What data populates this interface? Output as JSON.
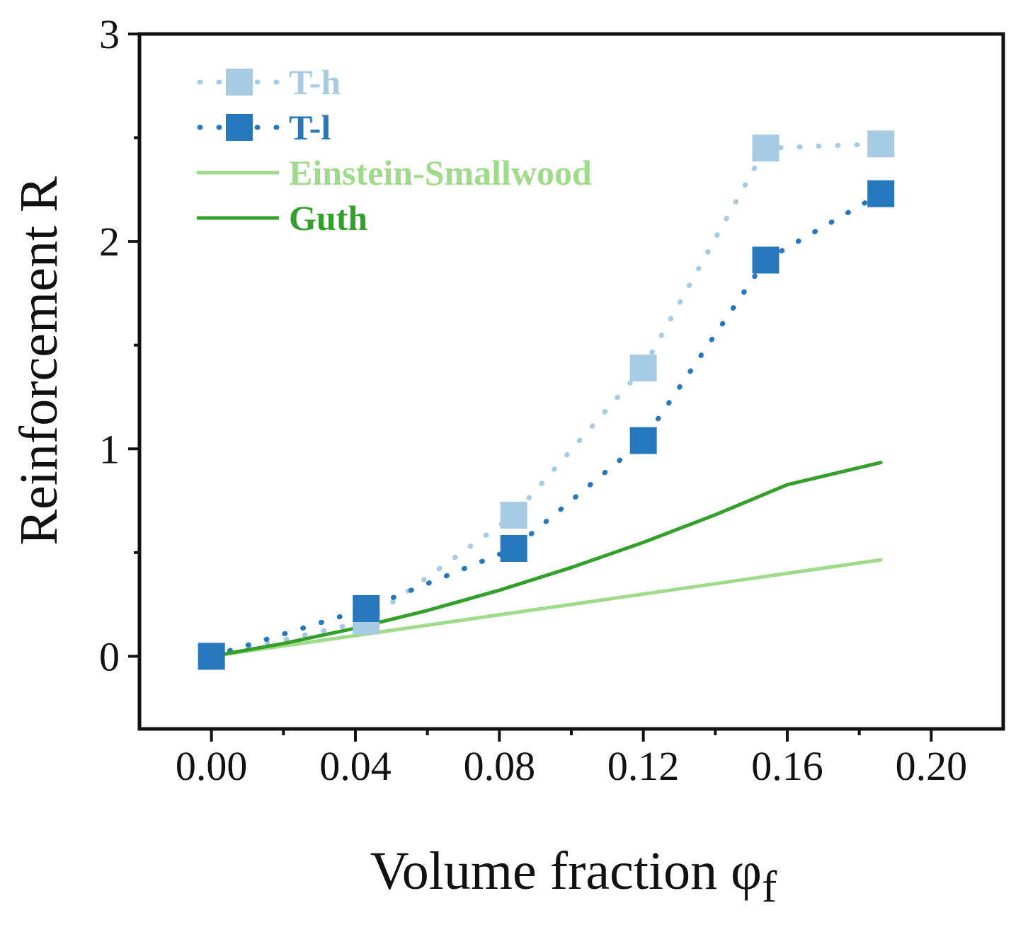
{
  "chart_data": {
    "type": "line",
    "title": "",
    "xlabel": "Volume fraction φ",
    "xlabel_subscript": "f",
    "ylabel": "Reinforcement R",
    "xlim": [
      -0.02,
      0.22
    ],
    "ylim": [
      -0.35,
      3.0
    ],
    "xticks": [
      0.0,
      0.04,
      0.08,
      0.12,
      0.16,
      0.2
    ],
    "xtick_labels": [
      "0.00",
      "0.04",
      "0.08",
      "0.12",
      "0.16",
      "0.20"
    ],
    "yticks": [
      0,
      1,
      2,
      3
    ],
    "ytick_labels": [
      "0",
      "1",
      "2",
      "3"
    ],
    "grid": false,
    "legend_position": "top-left",
    "series": [
      {
        "name": "T-h",
        "color": "#a6cbe3",
        "style": "dotted-with-square-markers",
        "x": [
          0.0,
          0.043,
          0.084,
          0.12,
          0.154,
          0.186
        ],
        "y": [
          0.0,
          0.17,
          0.68,
          1.39,
          2.45,
          2.47
        ]
      },
      {
        "name": "T-l",
        "color": "#2677bb",
        "style": "dotted-with-square-markers",
        "x": [
          0.0,
          0.043,
          0.084,
          0.12,
          0.154,
          0.186
        ],
        "y": [
          0.0,
          0.23,
          0.52,
          1.04,
          1.91,
          2.23
        ]
      },
      {
        "name": "Einstein-Smallwood",
        "color": "#9fdb8a",
        "style": "solid",
        "x": [
          0.0,
          0.02,
          0.04,
          0.06,
          0.08,
          0.1,
          0.12,
          0.14,
          0.16,
          0.186
        ],
        "y": [
          0.0,
          0.05,
          0.1,
          0.15,
          0.2,
          0.25,
          0.3,
          0.35,
          0.4,
          0.465
        ]
      },
      {
        "name": "Guth",
        "color": "#33a02c",
        "style": "solid",
        "x": [
          0.0,
          0.02,
          0.04,
          0.06,
          0.08,
          0.1,
          0.12,
          0.14,
          0.16,
          0.186
        ],
        "y": [
          0.0,
          0.0617,
          0.1354,
          0.2209,
          0.3184,
          0.428,
          0.5491,
          0.6822,
          0.8272,
          0.9341
        ]
      }
    ]
  }
}
